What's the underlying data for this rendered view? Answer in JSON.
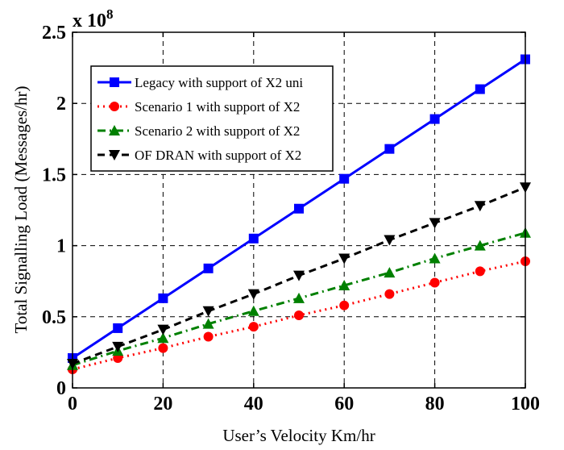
{
  "chart_data": {
    "type": "line",
    "xlabel": "User’s Velocity Km/hr",
    "ylabel": "Total Signalling Load (Messages/hr)",
    "y_multiplier_base": "x 10",
    "y_multiplier_exponent": "8",
    "xlim": [
      0,
      100
    ],
    "ylim": [
      0,
      2.5
    ],
    "x_ticks": [
      0,
      20,
      40,
      60,
      80,
      100
    ],
    "y_ticks": [
      0,
      0.5,
      1,
      1.5,
      2,
      2.5
    ],
    "x_tick_labels": [
      "0",
      "20",
      "40",
      "60",
      "80",
      "100"
    ],
    "y_tick_labels": [
      "0",
      "0.5",
      "1",
      "1.5",
      "2",
      "2.5"
    ],
    "grid": true,
    "legend_position": "top-left",
    "x": [
      0,
      10,
      20,
      30,
      40,
      50,
      60,
      70,
      80,
      90,
      100
    ],
    "series": [
      {
        "name": "Legacy with support of X2 uni",
        "color": "#0000ff",
        "line_style": "solid",
        "marker": "square",
        "values": [
          0.21,
          0.42,
          0.63,
          0.84,
          1.05,
          1.26,
          1.47,
          1.68,
          1.89,
          2.1,
          2.31
        ]
      },
      {
        "name": "Scenario 1 with support of X2",
        "color": "#ff0000",
        "line_style": "dotted",
        "marker": "circle",
        "values": [
          0.13,
          0.21,
          0.28,
          0.36,
          0.43,
          0.51,
          0.58,
          0.66,
          0.74,
          0.82,
          0.89
        ]
      },
      {
        "name": "Scenario 2 with support of X2",
        "color": "#008000",
        "line_style": "dashdot",
        "marker": "triangle-up",
        "values": [
          0.16,
          0.26,
          0.35,
          0.45,
          0.54,
          0.63,
          0.72,
          0.81,
          0.91,
          1.0,
          1.09
        ]
      },
      {
        "name": "OF DRAN with support of X2",
        "color": "#000000",
        "line_style": "dashed",
        "marker": "triangle-down",
        "values": [
          0.17,
          0.29,
          0.41,
          0.54,
          0.66,
          0.79,
          0.91,
          1.04,
          1.16,
          1.28,
          1.41
        ]
      }
    ]
  }
}
